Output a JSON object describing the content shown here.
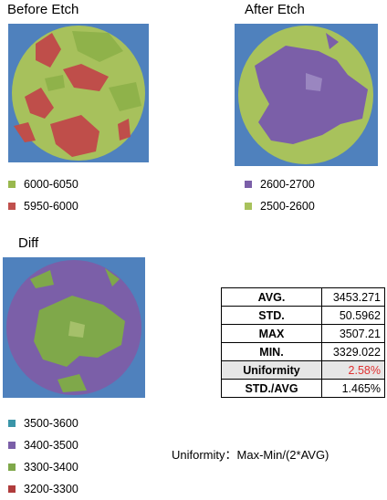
{
  "panels": {
    "before": {
      "title": "Before Etch",
      "legend": [
        {
          "label": "6000-6050",
          "color": "#99b84e"
        },
        {
          "label": "5950-6000",
          "color": "#c0504d"
        }
      ]
    },
    "after": {
      "title": "After Etch",
      "legend": [
        {
          "label": "2600-2700",
          "color": "#7b5fa8"
        },
        {
          "label": "2500-2600",
          "color": "#a8c25c"
        }
      ]
    },
    "diff": {
      "title": "Diff",
      "legend": [
        {
          "label": "3500-3600",
          "color": "#3a95a8"
        },
        {
          "label": "3400-3500",
          "color": "#7b5fa8"
        },
        {
          "label": "3300-3400",
          "color": "#7fa84a"
        },
        {
          "label": "3200-3300",
          "color": "#b03c3c"
        }
      ]
    }
  },
  "stats": [
    {
      "key": "AVG.",
      "value": "3453.271"
    },
    {
      "key": "STD.",
      "value": "50.5962"
    },
    {
      "key": "MAX",
      "value": "3507.21"
    },
    {
      "key": "MIN.",
      "value": "3329.022"
    },
    {
      "key": "Uniformity",
      "value": "2.58%",
      "value_color": "#e03030"
    },
    {
      "key": "STD./AVG",
      "value": "1.465%"
    }
  ],
  "formula": "Uniformity：Max-Min/(2*AVG)",
  "colors": {
    "wafer_bg": "#4f81bd"
  }
}
